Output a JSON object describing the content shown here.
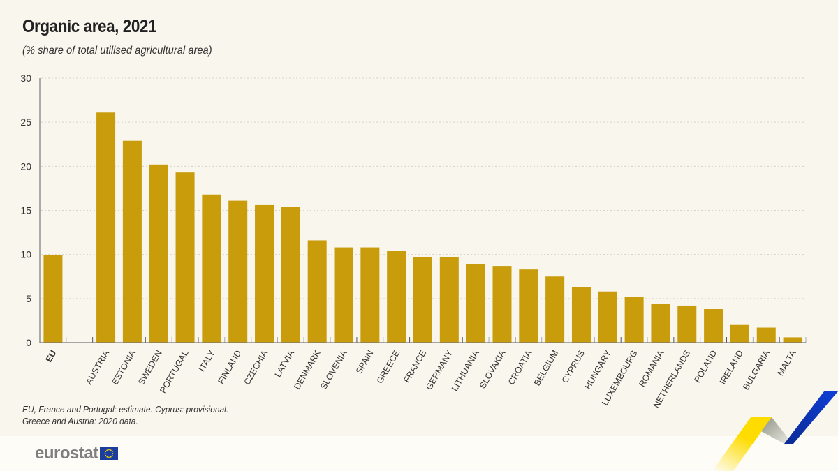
{
  "title": "Organic area, 2021",
  "subtitle": "(% share of total utilised agricultural area)",
  "notes": [
    "EU, France and Portugal: estimate.  Cyprus: provisional.",
    "Greece and Austria: 2020 data."
  ],
  "logo": {
    "text": "eurostat",
    "flag_icon": "eu-flag-icon"
  },
  "colors": {
    "bar": "#c99c0b",
    "background": "#f9f6ee",
    "grid": "#d8d3c4",
    "axis": "#777777"
  },
  "chart_data": {
    "type": "bar",
    "title": "Organic area, 2021",
    "ylabel": "% share of total utilised agricultural area",
    "ylim": [
      0,
      30
    ],
    "yticks": [
      0,
      5,
      10,
      15,
      20,
      25,
      30
    ],
    "grid": true,
    "categories": [
      "EU",
      "",
      "AUSTRIA",
      "ESTONIA",
      "SWEDEN",
      "PORTUGAL",
      "ITALY",
      "FINLAND",
      "CZECHIA",
      "LATVIA",
      "DENMARK",
      "SLOVENIA",
      "SPAIN",
      "GREECE",
      "FRANCE",
      "GERMANY",
      "LITHUANIA",
      "SLOVAKIA",
      "CROATIA",
      "BELGIUM",
      "CYPRUS",
      "HUNGARY",
      "LUXEMBOURG",
      "ROMANIA",
      "NETHERLANDS",
      "POLAND",
      "IRELAND",
      "BULGARIA",
      "MALTA"
    ],
    "values": [
      9.9,
      null,
      26.1,
      22.9,
      20.2,
      19.3,
      16.8,
      16.1,
      15.6,
      15.4,
      11.6,
      10.8,
      10.8,
      10.4,
      9.7,
      9.7,
      8.9,
      8.7,
      8.3,
      7.5,
      6.3,
      5.8,
      5.2,
      4.4,
      4.2,
      3.8,
      2.0,
      1.7,
      0.6
    ],
    "bold_categories": [
      "EU"
    ]
  }
}
